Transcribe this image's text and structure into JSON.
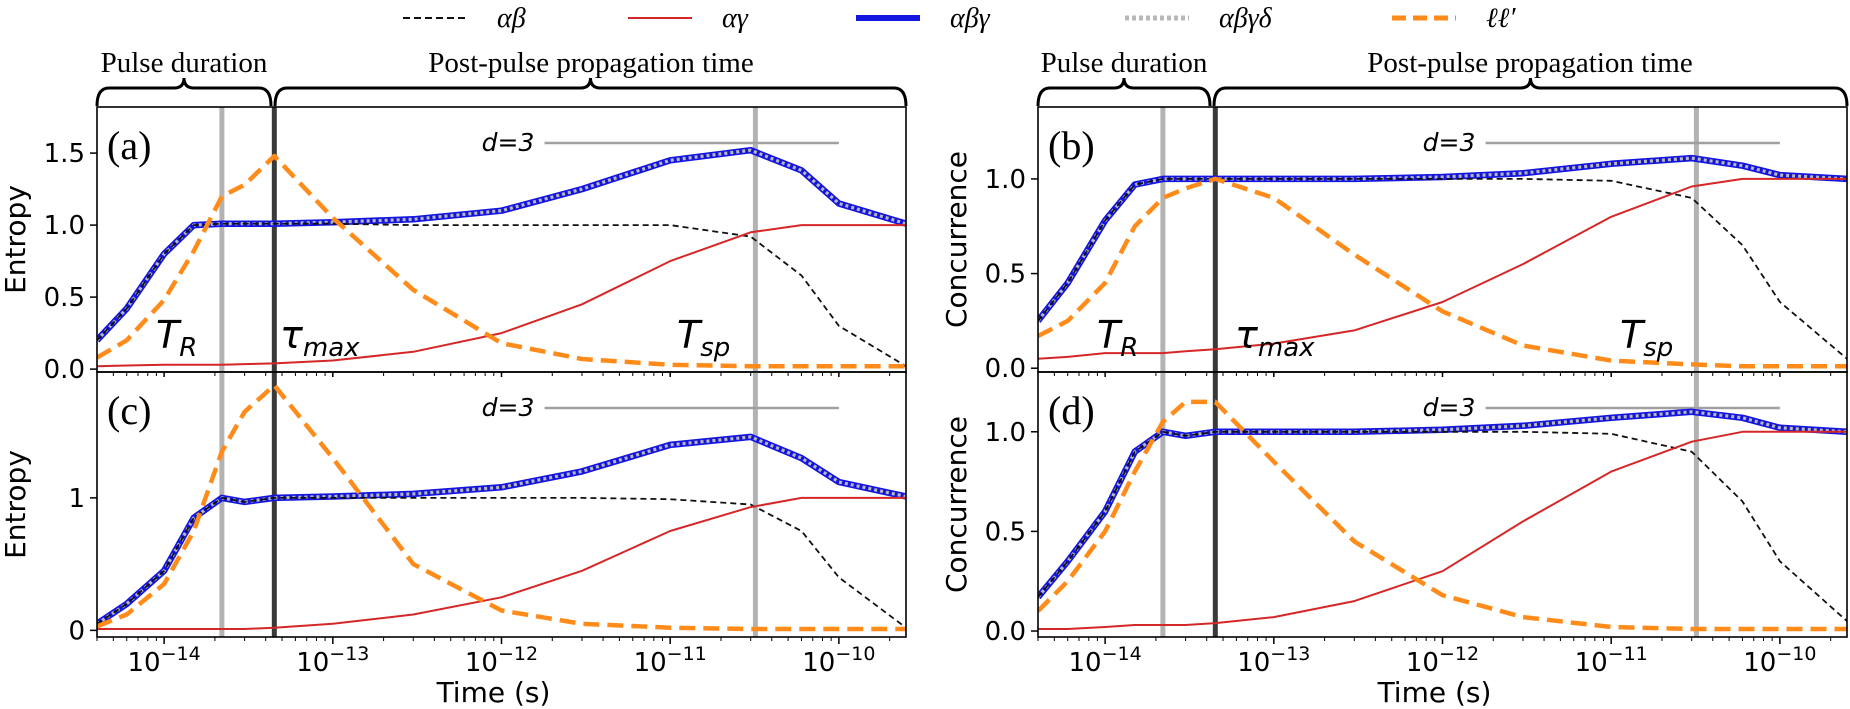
{
  "legend": [
    {
      "label": "αβ",
      "color": "#111111",
      "style": "dashed-thin"
    },
    {
      "label": "αγ",
      "color": "#d62728",
      "style": "solid"
    },
    {
      "label": "αβγ",
      "color": "#1515e0",
      "style": "solid-thick"
    },
    {
      "label": "αβγδ",
      "color": "#b0b0b0",
      "style": "dotted-thick"
    },
    {
      "label": "ℓℓ′",
      "color": "#ff8c1a",
      "style": "dashed-thick"
    }
  ],
  "brackets": {
    "pulse": "Pulse duration",
    "post": "Post-pulse propagation time"
  },
  "shared": {
    "xlabel": "Time (s)",
    "xscale": "log",
    "xlim": [
      4e-15,
      2.5e-10
    ],
    "xticks": [
      {
        "v": 1e-14,
        "label": "10−14"
      },
      {
        "v": 1e-13,
        "label": "10−13"
      },
      {
        "v": 1e-12,
        "label": "10−12"
      },
      {
        "v": 1e-11,
        "label": "10−11"
      },
      {
        "v": 1e-10,
        "label": "10−10"
      }
    ],
    "T_R": 2.2e-14,
    "pulse_end": 4.5e-14,
    "T_sp": 3.2e-11,
    "annotations": {
      "TR": "T",
      "TR_sub": "R",
      "tau": "τ",
      "tau_sub": "max",
      "Tsp": "T",
      "Tsp_sub": "sp",
      "d": "d=3"
    }
  },
  "chart_data": [
    {
      "type": "line",
      "panel": "(a)",
      "ylabel": "Entropy",
      "ylim": [
        -0.02,
        1.82
      ],
      "yticks": [
        {
          "v": 0,
          "label": "0.0"
        },
        {
          "v": 0.5,
          "label": "0.5"
        },
        {
          "v": 1.0,
          "label": "1.0"
        },
        {
          "v": 1.5,
          "label": "1.5"
        }
      ],
      "x": [
        4e-15,
        6e-15,
        1e-14,
        1.5e-14,
        2.2e-14,
        3e-14,
        4.5e-14,
        1e-13,
        3e-13,
        1e-12,
        3e-12,
        1e-11,
        3e-11,
        6e-11,
        1e-10,
        2.5e-10
      ],
      "series": [
        {
          "name": "αβ",
          "values": [
            0.2,
            0.42,
            0.8,
            1.0,
            1.01,
            1.01,
            1.01,
            1.01,
            1.0,
            1.0,
            1.0,
            1.0,
            0.92,
            0.65,
            0.3,
            0.02
          ]
        },
        {
          "name": "αγ",
          "values": [
            0.02,
            0.025,
            0.03,
            0.03,
            0.03,
            0.035,
            0.04,
            0.06,
            0.12,
            0.25,
            0.45,
            0.75,
            0.95,
            1.0,
            1.0,
            1.0
          ]
        },
        {
          "name": "αβγ",
          "values": [
            0.2,
            0.42,
            0.8,
            1.0,
            1.01,
            1.01,
            1.01,
            1.02,
            1.04,
            1.1,
            1.25,
            1.45,
            1.52,
            1.38,
            1.15,
            1.01
          ]
        },
        {
          "name": "αβγδ",
          "values": [
            0.2,
            0.42,
            0.8,
            1.0,
            1.01,
            1.01,
            1.01,
            1.02,
            1.04,
            1.1,
            1.25,
            1.45,
            1.52,
            1.38,
            1.15,
            1.01
          ]
        },
        {
          "name": "ℓℓ′",
          "values": [
            0.08,
            0.2,
            0.48,
            0.82,
            1.2,
            1.28,
            1.48,
            1.05,
            0.55,
            0.18,
            0.07,
            0.03,
            0.02,
            0.02,
            0.02,
            0.02
          ]
        }
      ]
    },
    {
      "type": "line",
      "panel": "(b)",
      "ylabel": "Concurrence",
      "ylim": [
        -0.02,
        1.38
      ],
      "yticks": [
        {
          "v": 0,
          "label": "0.0"
        },
        {
          "v": 0.5,
          "label": "0.5"
        },
        {
          "v": 1.0,
          "label": "1.0"
        }
      ],
      "x": [
        4e-15,
        6e-15,
        1e-14,
        1.5e-14,
        2.2e-14,
        3e-14,
        4.5e-14,
        1e-13,
        3e-13,
        1e-12,
        3e-12,
        1e-11,
        3e-11,
        6e-11,
        1e-10,
        2.5e-10
      ],
      "series": [
        {
          "name": "αβ",
          "values": [
            0.25,
            0.45,
            0.78,
            0.97,
            1.0,
            1.0,
            1.0,
            1.0,
            1.0,
            1.0,
            1.0,
            0.99,
            0.9,
            0.65,
            0.35,
            0.05
          ]
        },
        {
          "name": "αγ",
          "values": [
            0.05,
            0.06,
            0.08,
            0.08,
            0.08,
            0.09,
            0.1,
            0.13,
            0.2,
            0.35,
            0.55,
            0.8,
            0.96,
            1.0,
            1.0,
            1.0
          ]
        },
        {
          "name": "αβγ",
          "values": [
            0.25,
            0.45,
            0.78,
            0.97,
            1.0,
            1.0,
            1.0,
            1.0,
            1.0,
            1.01,
            1.03,
            1.08,
            1.11,
            1.07,
            1.02,
            1.0
          ]
        },
        {
          "name": "αβγδ",
          "values": [
            0.25,
            0.45,
            0.78,
            0.97,
            1.0,
            1.0,
            1.0,
            1.0,
            1.0,
            1.01,
            1.03,
            1.08,
            1.11,
            1.07,
            1.02,
            1.0
          ]
        },
        {
          "name": "ℓℓ′",
          "values": [
            0.17,
            0.25,
            0.45,
            0.75,
            0.9,
            0.95,
            1.0,
            0.9,
            0.6,
            0.3,
            0.12,
            0.04,
            0.02,
            0.01,
            0.01,
            0.01
          ]
        }
      ]
    },
    {
      "type": "line",
      "panel": "(c)",
      "ylabel": "Entropy",
      "ylim": [
        -0.05,
        1.95
      ],
      "yticks": [
        {
          "v": 0,
          "label": "0"
        },
        {
          "v": 1,
          "label": "1"
        }
      ],
      "x": [
        4e-15,
        6e-15,
        1e-14,
        1.5e-14,
        2.2e-14,
        3e-14,
        4.5e-14,
        1e-13,
        3e-13,
        1e-12,
        3e-12,
        1e-11,
        3e-11,
        6e-11,
        1e-10,
        2.5e-10
      ],
      "series": [
        {
          "name": "αβ",
          "values": [
            0.05,
            0.2,
            0.45,
            0.85,
            1.0,
            0.97,
            1.0,
            1.0,
            1.0,
            1.0,
            1.0,
            0.99,
            0.95,
            0.75,
            0.4,
            0.02
          ]
        },
        {
          "name": "αγ",
          "values": [
            0.01,
            0.01,
            0.01,
            0.01,
            0.01,
            0.01,
            0.02,
            0.05,
            0.12,
            0.25,
            0.45,
            0.75,
            0.93,
            1.0,
            1.0,
            1.0
          ]
        },
        {
          "name": "αβγ",
          "values": [
            0.05,
            0.2,
            0.45,
            0.85,
            1.0,
            0.97,
            1.0,
            1.01,
            1.03,
            1.08,
            1.2,
            1.4,
            1.46,
            1.3,
            1.12,
            1.01
          ]
        },
        {
          "name": "αβγδ",
          "values": [
            0.05,
            0.2,
            0.45,
            0.85,
            1.0,
            0.97,
            1.0,
            1.01,
            1.03,
            1.08,
            1.2,
            1.4,
            1.46,
            1.3,
            1.12,
            1.01
          ]
        },
        {
          "name": "ℓℓ′",
          "values": [
            0.03,
            0.12,
            0.35,
            0.75,
            1.35,
            1.65,
            1.85,
            1.3,
            0.5,
            0.15,
            0.05,
            0.02,
            0.01,
            0.01,
            0.01,
            0.01
          ]
        }
      ]
    },
    {
      "type": "line",
      "panel": "(d)",
      "ylabel": "Concurrence",
      "ylim": [
        -0.03,
        1.3
      ],
      "yticks": [
        {
          "v": 0,
          "label": "0.0"
        },
        {
          "v": 0.5,
          "label": "0.5"
        },
        {
          "v": 1.0,
          "label": "1.0"
        }
      ],
      "x": [
        4e-15,
        6e-15,
        1e-14,
        1.5e-14,
        2.2e-14,
        3e-14,
        4.5e-14,
        1e-13,
        3e-13,
        1e-12,
        3e-12,
        1e-11,
        3e-11,
        6e-11,
        1e-10,
        2.5e-10
      ],
      "series": [
        {
          "name": "αβ",
          "values": [
            0.17,
            0.35,
            0.6,
            0.9,
            1.0,
            0.98,
            1.0,
            1.0,
            1.0,
            1.0,
            1.0,
            0.99,
            0.9,
            0.65,
            0.35,
            0.05
          ]
        },
        {
          "name": "αγ",
          "values": [
            0.01,
            0.01,
            0.02,
            0.03,
            0.03,
            0.03,
            0.04,
            0.07,
            0.15,
            0.3,
            0.55,
            0.8,
            0.95,
            1.0,
            1.0,
            1.0
          ]
        },
        {
          "name": "αβγ",
          "values": [
            0.17,
            0.35,
            0.6,
            0.9,
            1.0,
            0.98,
            1.0,
            1.0,
            1.0,
            1.01,
            1.03,
            1.07,
            1.1,
            1.07,
            1.02,
            1.0
          ]
        },
        {
          "name": "αβγδ",
          "values": [
            0.17,
            0.35,
            0.6,
            0.9,
            1.0,
            0.98,
            1.0,
            1.0,
            1.0,
            1.01,
            1.03,
            1.07,
            1.1,
            1.07,
            1.02,
            1.0
          ]
        },
        {
          "name": "ℓℓ′",
          "values": [
            0.1,
            0.25,
            0.5,
            0.8,
            1.05,
            1.15,
            1.15,
            0.85,
            0.45,
            0.18,
            0.07,
            0.02,
            0.01,
            0.01,
            0.01,
            0.01
          ]
        }
      ]
    }
  ]
}
